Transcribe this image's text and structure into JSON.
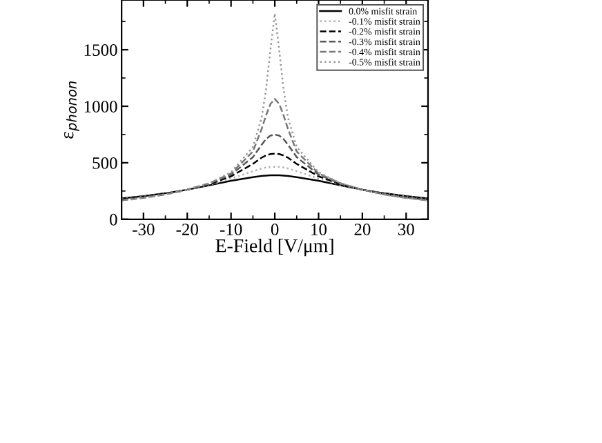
{
  "chart_data": {
    "type": "line",
    "xlabel": "E-Field [V/μm]",
    "ylabel": "ε$_{phonon}$",
    "x": [
      -35,
      -30,
      -25,
      -20,
      -15,
      -10,
      -5,
      -3,
      -2,
      -1,
      0,
      1,
      2,
      3,
      5,
      10,
      15,
      20,
      25,
      30,
      35
    ],
    "series": [
      {
        "name": "0.0% misfit strain",
        "color": "#000000",
        "line_style": "solid",
        "values": [
          185,
          205,
          230,
          262,
          300,
          340,
          372,
          383,
          387,
          389,
          390,
          389,
          387,
          383,
          372,
          340,
          300,
          262,
          230,
          205,
          185
        ]
      },
      {
        "name": "-0.1% misfit strain",
        "color": "#b0b0b0",
        "line_style": "dotted",
        "values": [
          180,
          200,
          227,
          262,
          305,
          360,
          425,
          450,
          458,
          463,
          465,
          463,
          458,
          450,
          425,
          360,
          305,
          262,
          227,
          200,
          180
        ]
      },
      {
        "name": "-0.2% misfit strain",
        "color": "#000000",
        "line_style": "dashed",
        "values": [
          175,
          195,
          225,
          262,
          310,
          380,
          490,
          545,
          565,
          577,
          580,
          577,
          565,
          545,
          490,
          380,
          310,
          262,
          225,
          195,
          175
        ]
      },
      {
        "name": "-0.3% misfit strain",
        "color": "#555555",
        "line_style": "dashed",
        "values": [
          170,
          192,
          222,
          262,
          315,
          395,
          550,
          660,
          710,
          740,
          750,
          740,
          710,
          660,
          550,
          395,
          315,
          262,
          222,
          192,
          170
        ]
      },
      {
        "name": "-0.4% misfit strain",
        "color": "#777777",
        "line_style": "dashed",
        "values": [
          168,
          190,
          220,
          262,
          318,
          405,
          600,
          800,
          920,
          1020,
          1065,
          1020,
          920,
          800,
          600,
          405,
          318,
          262,
          220,
          190,
          168
        ]
      },
      {
        "name": "-0.5% misfit strain",
        "color": "#999999",
        "line_style": "dotted",
        "values": [
          165,
          188,
          218,
          262,
          320,
          415,
          640,
          900,
          1150,
          1500,
          1820,
          1500,
          1150,
          900,
          640,
          415,
          320,
          262,
          218,
          188,
          165
        ]
      }
    ],
    "xlim": [
      -35,
      35
    ],
    "xticks": [
      -30,
      -20,
      -10,
      0,
      10,
      20,
      30
    ],
    "ylim": [
      0,
      1940
    ],
    "yticks": [
      0,
      500,
      1000,
      1500
    ],
    "legend": "top right",
    "grid": false
  }
}
